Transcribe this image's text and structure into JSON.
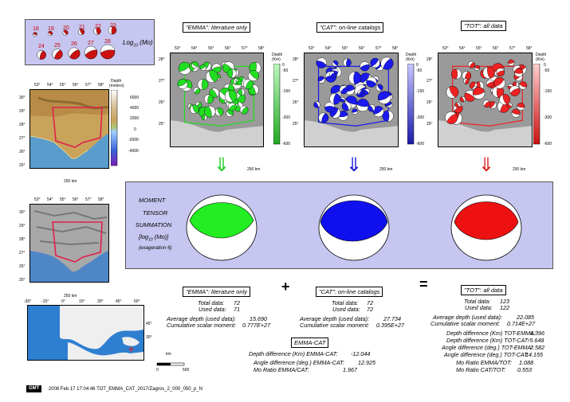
{
  "legend": {
    "magnitudes": [
      "18",
      "19",
      "20",
      "21",
      "22",
      "23",
      "24",
      "25",
      "26",
      "27",
      "28"
    ],
    "axis_label": "Log",
    "axis_sub": "10",
    "axis_unit": "(Mo)"
  },
  "panels": [
    {
      "title": "\"EMMA\": literature only",
      "color": "#22dd22",
      "scale": "250 km"
    },
    {
      "title": "\"CAT\": on-line catalogs",
      "color": "#1a1aee",
      "scale": "250 km"
    },
    {
      "title": "\"TOT\": all data",
      "color": "#ee2222",
      "scale": "250 km"
    }
  ],
  "depth_colorbar": {
    "label_1": "Depth",
    "label_2": "(Km)",
    "ticks": [
      "0",
      "-50",
      "-150",
      "-300",
      "-600"
    ]
  },
  "lon_ticks": [
    "53°",
    "54°",
    "55°",
    "56°",
    "57°",
    "58°"
  ],
  "lat_ticks": [
    "28°",
    "27°",
    "26°",
    "25°"
  ],
  "topo_map": {
    "lon_ticks": [
      "53°",
      "54°",
      "55°",
      "56°",
      "57°",
      "58°"
    ],
    "lat_ticks": [
      "30°",
      "29°",
      "28°",
      "27°",
      "26°",
      "25°"
    ],
    "elev_title": "Depth",
    "elev_unit": "(meters)",
    "elev_ticks": [
      "6000",
      "4000",
      "2000",
      "0",
      "-2000",
      "-4000"
    ],
    "scale": "250 km"
  },
  "relief_map": {
    "lon_ticks": [
      "53°",
      "54°",
      "55°",
      "56°",
      "57°",
      "58°"
    ],
    "lat_ticks": [
      "30°",
      "29°",
      "28°",
      "27°",
      "26°",
      "25°"
    ],
    "scale": "250 km"
  },
  "locator": {
    "lon_ticks": [
      "-30°",
      "-15°",
      "0°",
      "15°",
      "30°",
      "45°",
      "60°"
    ],
    "lat_ticks": [
      "45°",
      "30°"
    ],
    "scale_label": "km",
    "scale_ticks": [
      "0",
      "500"
    ]
  },
  "summation": {
    "line1": "MOMENT",
    "line2": "TENSOR",
    "line3": "SUMMATION",
    "line4": "[log",
    "line4_sub": "10",
    "line4_end": " (Mo)]",
    "line5": "(exageration 6)"
  },
  "operators": {
    "plus": "+",
    "equals": "="
  },
  "stats": {
    "emma": {
      "title": "\"EMMA\": literature only",
      "total_label": "Total data:",
      "total": "72",
      "used_label": "Used data:",
      "used": "71",
      "depth_label": "Average depth (used data):",
      "depth": "15.690",
      "moment_label": "Cumulative scalar moment:",
      "moment": "0.777E+27"
    },
    "cat": {
      "title": "\"CAT\": on-line catalogs",
      "total_label": "Total data:",
      "total": "72",
      "used_label": "Used data:",
      "used": "72",
      "depth_label": "Average depth (used data):",
      "depth": "27.734",
      "moment_label": "Cumulative scalar moment:",
      "moment": "0.395E+27"
    },
    "tot": {
      "title": "\"TOT\": all data",
      "total_label": "Total data:",
      "total": "123",
      "used_label": "Used data:",
      "used": "122",
      "depth_label": "Average depth (used data):",
      "depth": "22.085",
      "moment_label": "Cumulative scalar moment:",
      "moment": "0.714E+27"
    },
    "tot_diffs": [
      {
        "label": "Depth difference (Km) TOT-EMMA:",
        "value": "6.396"
      },
      {
        "label": "Depth difference (Km) TOT-CAT:",
        "value": "-5.648"
      },
      {
        "label": "Angle difference (deg.) TOT-EMMA:",
        "value": "2.582"
      },
      {
        "label": "Angle difference (deg.) TOT-CAT:",
        "value": "14.155"
      },
      {
        "label": "Mo Ratio EMMA/TOT:",
        "value": "1.088"
      },
      {
        "label": "Mo Ratio CAT/TOT:",
        "value": "0.553"
      }
    ],
    "emma_cat": {
      "title": "EMMA-CAT",
      "rows": [
        {
          "label": "Depth difference (Km) EMMA-CAT:",
          "value": "-12.044"
        },
        {
          "label": "Angle difference (deg.) EMMA-CAT:",
          "value": "12.925"
        },
        {
          "label": "Mo Ratio EMMA/CAT:",
          "value": "1.967"
        }
      ]
    }
  },
  "footer": {
    "logo": "GMT",
    "text": "2008 Feb 17 17:04:46   TOT_EMMA_CAT_2017/Zagros_2_000_050_p_N"
  }
}
